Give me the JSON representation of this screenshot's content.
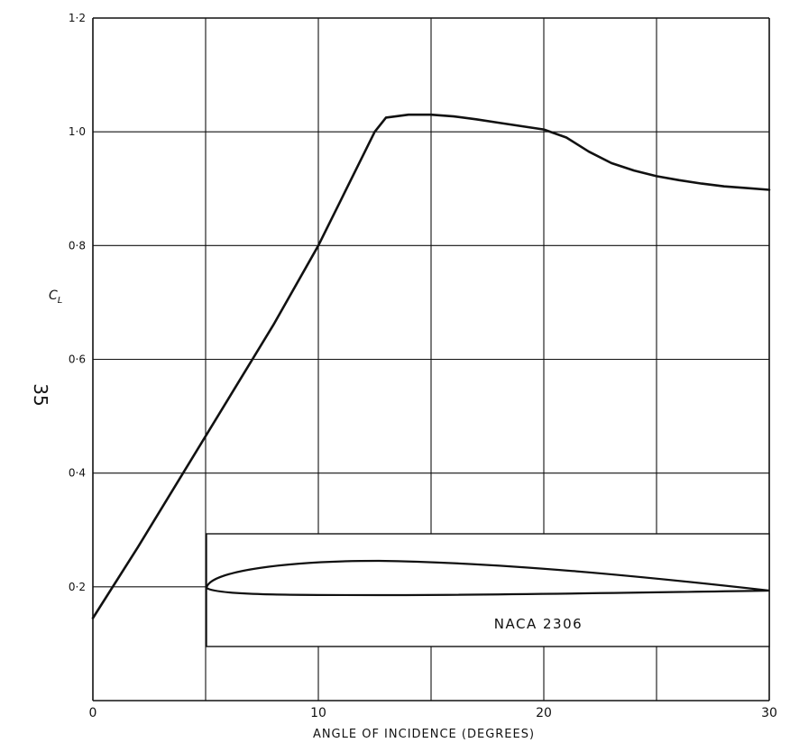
{
  "page_number": "35",
  "inset_label": "NACA 2306",
  "chart_data": {
    "type": "line",
    "title": "",
    "xlabel": "ANGLE OF INCIDENCE (DEGREES)",
    "ylabel": "CL",
    "ylabel_main": "C",
    "ylabel_sub": "L",
    "xlim": [
      0,
      30
    ],
    "ylim": [
      0,
      1.2
    ],
    "grid": true,
    "x_ticks": [
      0,
      10,
      20,
      30
    ],
    "x_tick_labels": [
      "0",
      "10",
      "20",
      "30"
    ],
    "y_ticks": [
      0.2,
      0.4,
      0.6,
      0.8,
      1.0,
      1.2
    ],
    "y_tick_labels": [
      "0·2",
      "0·4",
      "0·6",
      "0·8",
      "1·0",
      "1·2"
    ],
    "series": [
      {
        "x": [
          0,
          2,
          4,
          6,
          8,
          10,
          11,
          12,
          12.5,
          13,
          14,
          15,
          16,
          17,
          18,
          19,
          20,
          21,
          22,
          23,
          24,
          25,
          26,
          27,
          28,
          29,
          30
        ],
        "y": [
          0.145,
          0.27,
          0.4,
          0.53,
          0.66,
          0.8,
          0.88,
          0.96,
          1.0,
          1.025,
          1.03,
          1.03,
          1.027,
          1.022,
          1.016,
          1.01,
          1.004,
          0.99,
          0.965,
          0.945,
          0.932,
          0.922,
          0.915,
          0.909,
          0.904,
          0.901,
          0.898
        ],
        "color": "#111111"
      }
    ]
  }
}
